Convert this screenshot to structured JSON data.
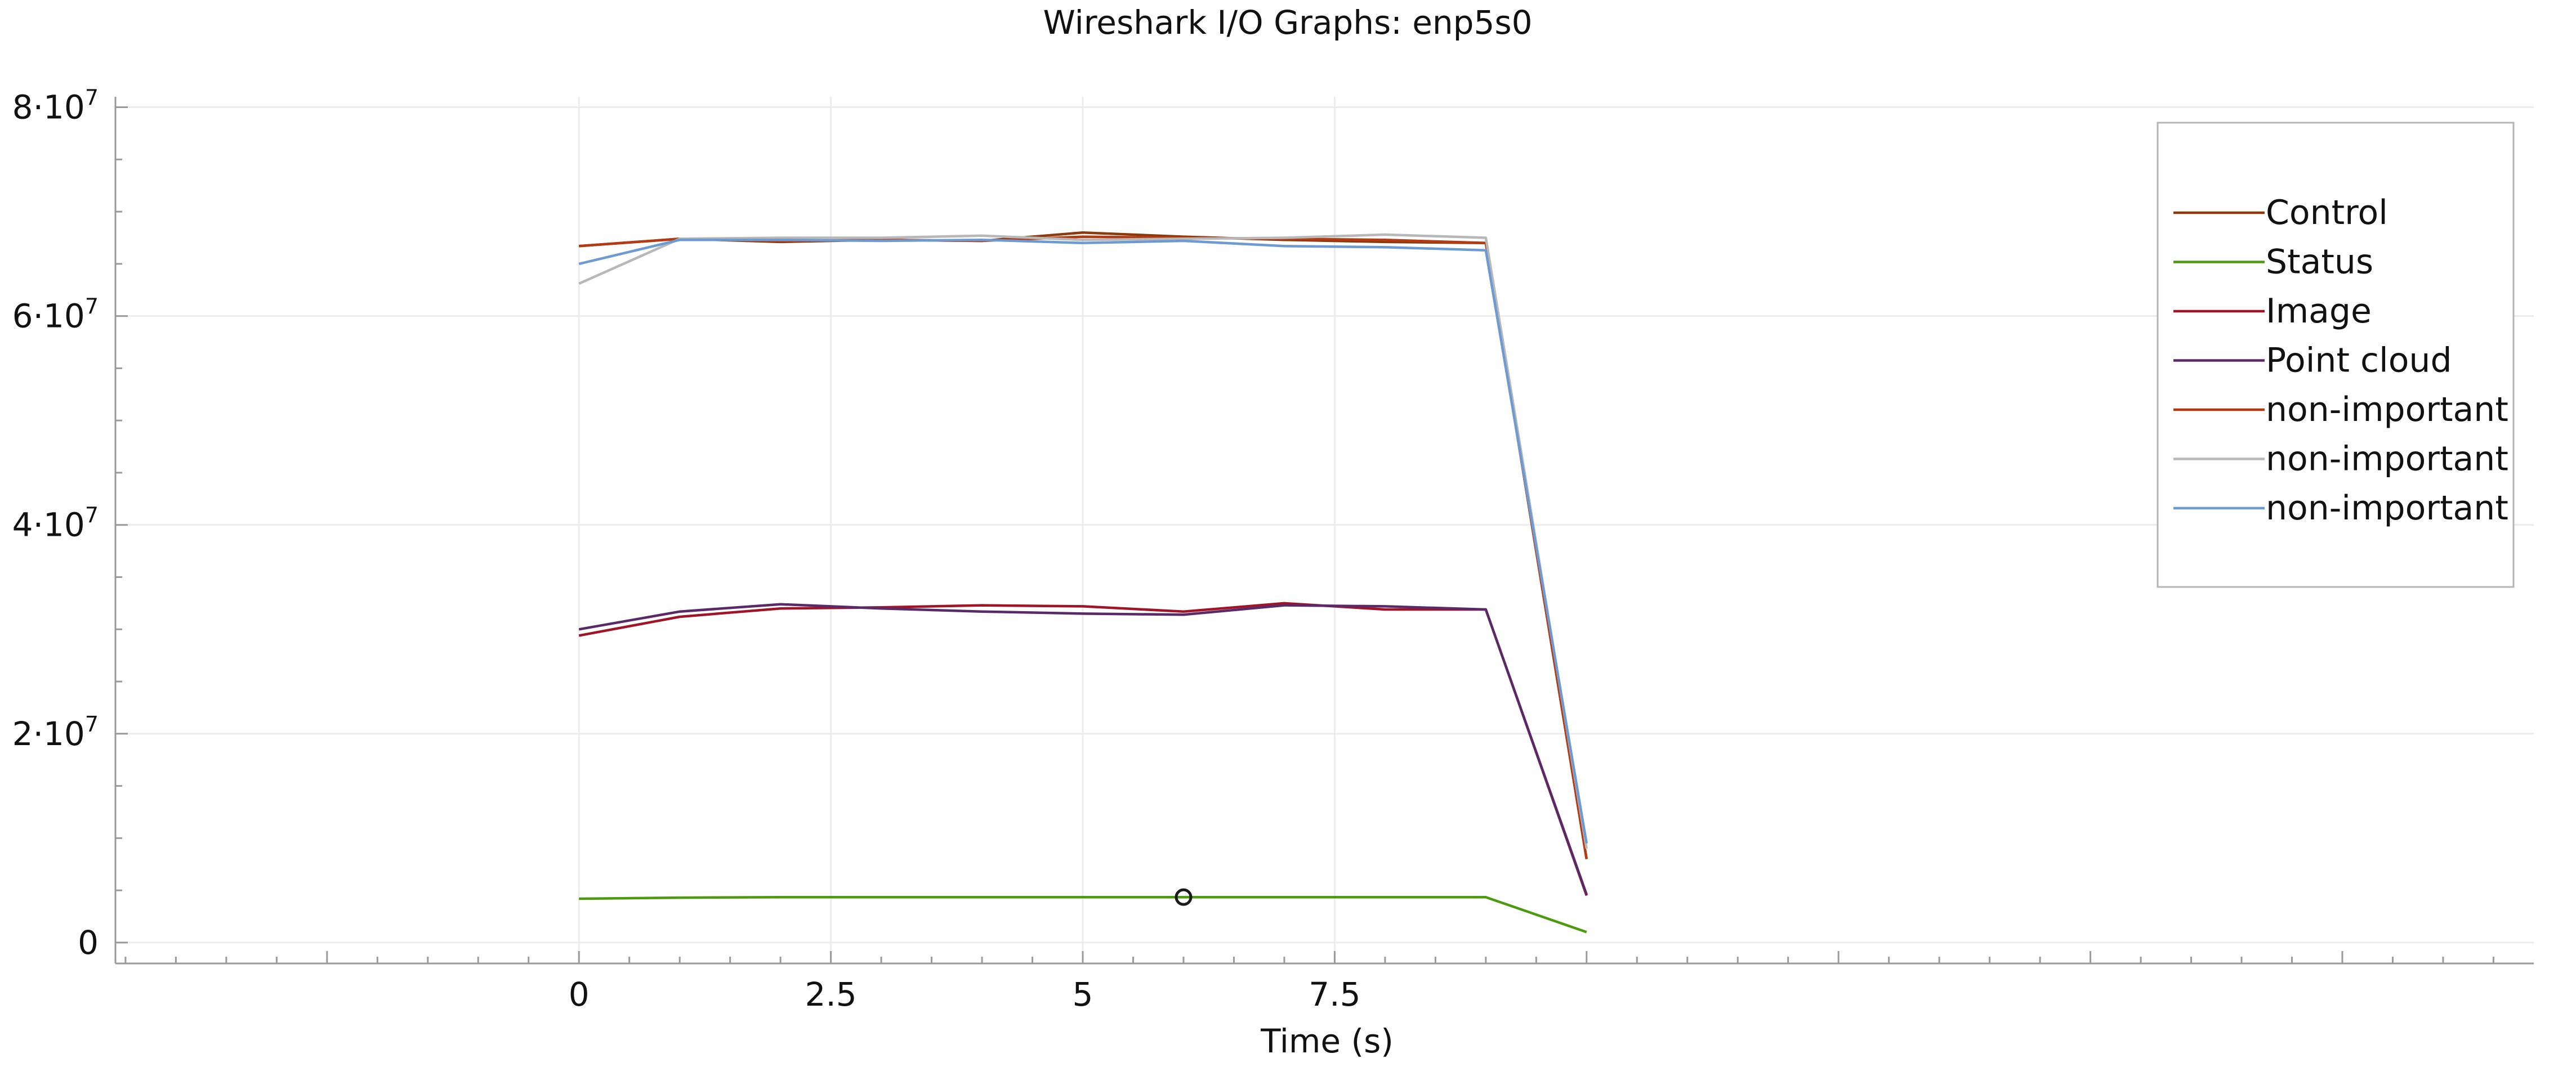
{
  "chart_data": {
    "type": "line",
    "title": "Wireshark I/O Graphs: enp5s0",
    "xlabel": "Time (s)",
    "ylabel": "",
    "xlim": [
      -4.6,
      19.4
    ],
    "ylim": [
      -2000000,
      81000000
    ],
    "x_ticks": [
      {
        "value": 0,
        "label": "0"
      },
      {
        "value": 2.5,
        "label": "2.5"
      },
      {
        "value": 5,
        "label": "5"
      },
      {
        "value": 7.5,
        "label": "7.5"
      }
    ],
    "y_ticks": [
      {
        "value": 0,
        "label_base": "0",
        "label_exp": ""
      },
      {
        "value": 20000000,
        "label_base": "2·10",
        "label_exp": "7"
      },
      {
        "value": 40000000,
        "label_base": "4·10",
        "label_exp": "7"
      },
      {
        "value": 60000000,
        "label_base": "6·10",
        "label_exp": "7"
      },
      {
        "value": 80000000,
        "label_base": "8·10",
        "label_exp": "7"
      }
    ],
    "grid": true,
    "legend_position": "top-right",
    "series": [
      {
        "name": "Control",
        "color": "#8b3a0e",
        "x": [
          0,
          1,
          2,
          3,
          4,
          5,
          6,
          7,
          8,
          9,
          10
        ],
        "y": [
          66700000,
          67400000,
          67100000,
          67300000,
          67200000,
          68000000,
          67600000,
          67300000,
          67100000,
          67000000,
          8000000
        ]
      },
      {
        "name": "Status",
        "color": "#4d9a10",
        "x": [
          0,
          1,
          2,
          3,
          4,
          5,
          6,
          7,
          8,
          9,
          10
        ],
        "y": [
          4200000,
          4300000,
          4350000,
          4350000,
          4350000,
          4350000,
          4350000,
          4350000,
          4350000,
          4350000,
          1000000
        ]
      },
      {
        "name": "Image",
        "color": "#a01428",
        "x": [
          0,
          1,
          2,
          3,
          4,
          5,
          6,
          7,
          8,
          9,
          10
        ],
        "y": [
          29400000,
          31200000,
          32000000,
          32100000,
          32300000,
          32200000,
          31700000,
          32500000,
          31900000,
          31900000,
          4500000
        ]
      },
      {
        "name": "Point cloud",
        "color": "#5a2a68",
        "x": [
          0,
          1,
          2,
          3,
          4,
          5,
          6,
          7,
          8,
          9,
          10
        ],
        "y": [
          30000000,
          31700000,
          32400000,
          32000000,
          31700000,
          31500000,
          31400000,
          32300000,
          32200000,
          31900000,
          4600000
        ]
      },
      {
        "name": "non-important",
        "color": "#b43a14",
        "x": [
          0,
          1,
          2,
          3,
          4,
          5,
          6,
          7,
          8,
          9,
          10
        ],
        "y": [
          66700000,
          67400000,
          67200000,
          67300000,
          67200000,
          67600000,
          67500000,
          67400000,
          67300000,
          67000000,
          8000000
        ]
      },
      {
        "name": "non-important",
        "color": "#b8b8b8",
        "x": [
          0,
          1,
          2,
          3,
          4,
          5,
          6,
          7,
          8,
          9,
          10
        ],
        "y": [
          63100000,
          67400000,
          67500000,
          67500000,
          67700000,
          67300000,
          67400000,
          67500000,
          67800000,
          67500000,
          9000000
        ]
      },
      {
        "name": "non-important",
        "color": "#6d9bd1",
        "x": [
          0,
          1,
          2,
          3,
          4,
          5,
          6,
          7,
          8,
          9,
          10
        ],
        "y": [
          65000000,
          67300000,
          67300000,
          67200000,
          67300000,
          67000000,
          67200000,
          66700000,
          66600000,
          66300000,
          9500000
        ]
      }
    ],
    "marker": {
      "x": 6,
      "y": 4350000,
      "series": "Status"
    }
  }
}
